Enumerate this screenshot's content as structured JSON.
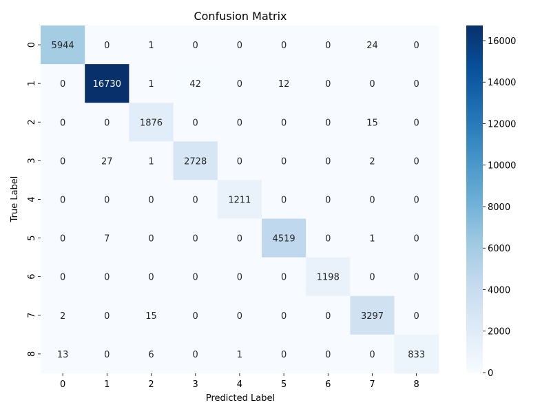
{
  "chart_data": {
    "type": "heatmap",
    "title": "Confusion Matrix",
    "xlabel": "Predicted Label",
    "ylabel": "True Label",
    "x_categories": [
      "0",
      "1",
      "2",
      "3",
      "4",
      "5",
      "6",
      "7",
      "8"
    ],
    "y_categories": [
      "0",
      "1",
      "2",
      "3",
      "4",
      "5",
      "6",
      "7",
      "8"
    ],
    "matrix": [
      [
        5944,
        0,
        1,
        0,
        0,
        0,
        0,
        24,
        0
      ],
      [
        0,
        16730,
        1,
        42,
        0,
        12,
        0,
        0,
        0
      ],
      [
        0,
        0,
        1876,
        0,
        0,
        0,
        0,
        15,
        0
      ],
      [
        0,
        27,
        1,
        2728,
        0,
        0,
        0,
        2,
        0
      ],
      [
        0,
        0,
        0,
        0,
        1211,
        0,
        0,
        0,
        0
      ],
      [
        0,
        7,
        0,
        0,
        0,
        4519,
        0,
        1,
        0
      ],
      [
        0,
        0,
        0,
        0,
        0,
        0,
        1198,
        0,
        0
      ],
      [
        2,
        0,
        15,
        0,
        0,
        0,
        0,
        3297,
        0
      ],
      [
        13,
        0,
        6,
        0,
        1,
        0,
        0,
        0,
        833
      ]
    ],
    "colorbar": {
      "colormap": "Blues",
      "range": [
        0,
        16730
      ],
      "ticks": [
        0,
        2000,
        4000,
        6000,
        8000,
        10000,
        12000,
        14000,
        16000
      ],
      "placement": "right"
    },
    "grid": false,
    "legend": "none"
  }
}
